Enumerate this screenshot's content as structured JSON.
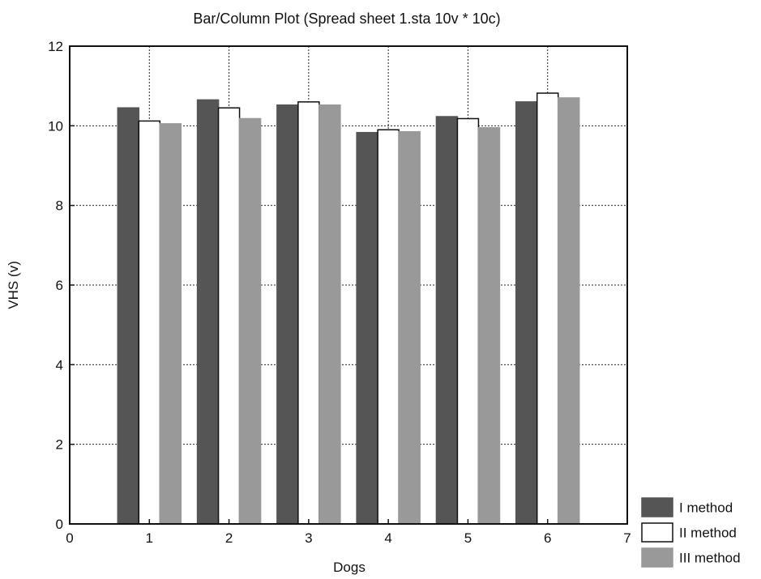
{
  "chart_data": {
    "type": "bar",
    "title": "Bar/Column Plot (Spread sheet 1.sta 10v * 10c)",
    "xlabel": "Dogs",
    "ylabel": "VHS (v)",
    "categories": [
      1,
      2,
      3,
      4,
      5,
      6
    ],
    "xlim": [
      0,
      7
    ],
    "ylim": [
      0,
      12
    ],
    "x_ticks": [
      0,
      1,
      2,
      3,
      4,
      5,
      6,
      7
    ],
    "y_ticks": [
      0,
      2,
      4,
      6,
      8,
      10,
      12
    ],
    "grid": true,
    "legend_position": "bottom-right",
    "series": [
      {
        "name": "I method",
        "color": "#555555",
        "values": [
          10.45,
          10.65,
          10.52,
          9.83,
          10.23,
          10.6
        ]
      },
      {
        "name": "II method",
        "color": "#ffffff",
        "values": [
          10.12,
          10.45,
          10.6,
          9.9,
          10.18,
          10.82
        ]
      },
      {
        "name": "III method",
        "color": "#999999",
        "values": [
          10.05,
          10.18,
          10.52,
          9.85,
          9.95,
          10.7
        ]
      }
    ]
  }
}
